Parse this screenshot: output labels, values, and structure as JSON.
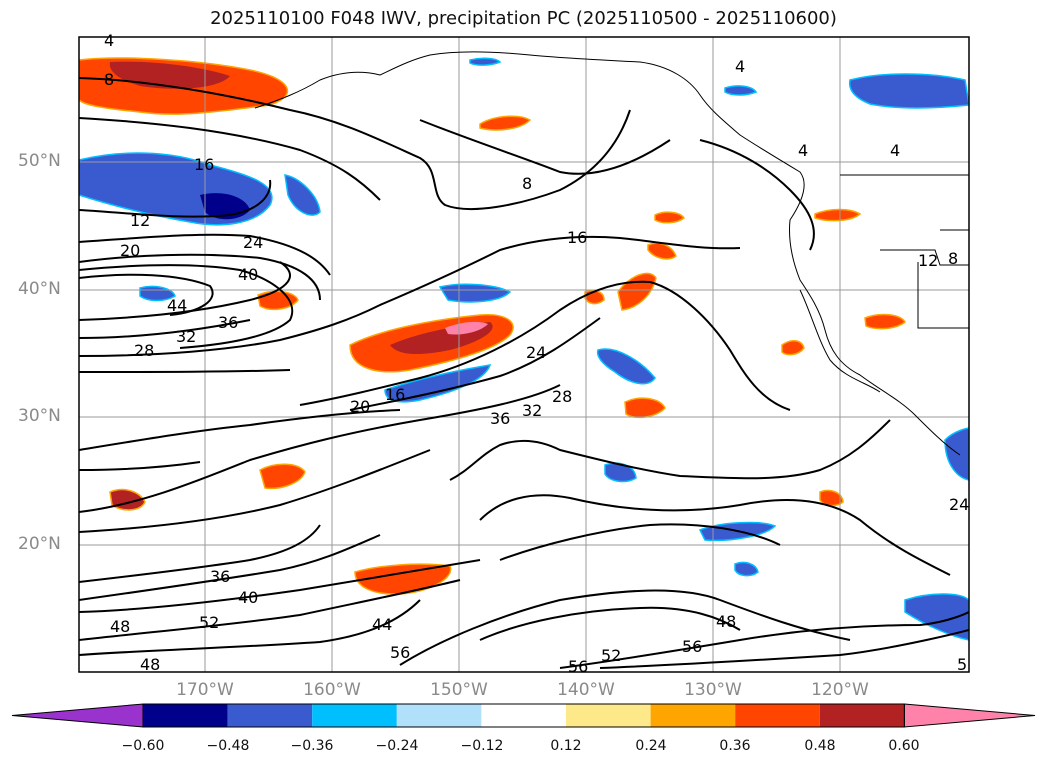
{
  "title": "2025110100 F048 IWV, precipitation PC (2025110500 - 2025110600)",
  "map": {
    "lat_labels": [
      "50°N",
      "40°N",
      "30°N",
      "20°N"
    ],
    "lon_labels": [
      "170°W",
      "160°W",
      "150°W",
      "140°W",
      "130°W",
      "120°W"
    ],
    "contour_labels": [
      "4",
      "8",
      "16",
      "12",
      "20",
      "24",
      "40",
      "44",
      "36",
      "32",
      "28",
      "8",
      "16",
      "24",
      "20",
      "16",
      "36",
      "32",
      "28",
      "36",
      "40",
      "48",
      "52",
      "48",
      "44",
      "56",
      "56",
      "52",
      "56",
      "48",
      "4",
      "4",
      "4",
      "12",
      "8",
      "24",
      "5"
    ],
    "contour_color": "#000000",
    "coastline_color": "#000000",
    "grid_color": "#9a9a9a"
  },
  "colorbar": {
    "ticks": [
      "−0.60",
      "−0.48",
      "−0.36",
      "−0.24",
      "−0.12",
      "0.12",
      "0.24",
      "0.36",
      "0.48",
      "0.60"
    ],
    "colors": [
      "#9a32cd",
      "#00008b",
      "#3a5bd0",
      "#00bfff",
      "#b0e0fa",
      "#ffffff",
      "#fde98a",
      "#ffa500",
      "#ff4500",
      "#b22222",
      "#ff82ab"
    ]
  }
}
